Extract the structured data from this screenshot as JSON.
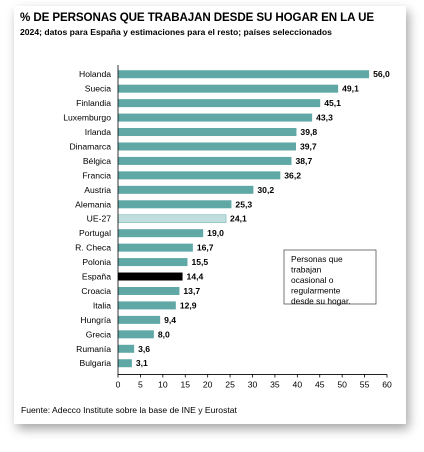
{
  "header": {
    "title": "% DE PERSONAS QUE TRABAJAN DESDE SU HOGAR EN LA UE",
    "subtitle": "2024; datos para España y estimaciones para el resto; países seleccionados"
  },
  "footer": {
    "source": "Fuente: Adecco Institute sobre la base de INE y Eurostat"
  },
  "chart_data": {
    "type": "bar",
    "orientation": "horizontal",
    "title": "% DE PERSONAS QUE TRABAJAN DESDE SU HOGAR EN LA UE",
    "subtitle": "2024; datos para España y estimaciones para el resto; países seleccionados",
    "categories": [
      "Holanda",
      "Suecia",
      "Finlandia",
      "Luxemburgo",
      "Irlanda",
      "Dinamarca",
      "Bélgica",
      "Francia",
      "Austria",
      "Alemania",
      "UE-27",
      "Portugal",
      "R. Checa",
      "Polonia",
      "España",
      "Croacia",
      "Italia",
      "Hungría",
      "Grecia",
      "Rumanía",
      "Bulgaria"
    ],
    "values": [
      56.0,
      49.1,
      45.1,
      43.3,
      39.8,
      39.7,
      38.7,
      36.2,
      30.2,
      25.3,
      24.1,
      19.0,
      16.7,
      15.5,
      14.4,
      13.7,
      12.9,
      9.4,
      8.0,
      3.6,
      3.1
    ],
    "value_labels": [
      "56,0",
      "49,1",
      "45,1",
      "43,3",
      "39,8",
      "39,7",
      "38,7",
      "36,2",
      "30,2",
      "25,3",
      "24,1",
      "19,0",
      "16,7",
      "15,5",
      "14,4",
      "13,7",
      "12,9",
      "9,4",
      "8,0",
      "3,6",
      "3,1"
    ],
    "xlim": [
      0,
      60
    ],
    "xticks": [
      "0",
      "5",
      "10",
      "15",
      "20",
      "25",
      "30",
      "35",
      "40",
      "45",
      "50",
      "55",
      "60"
    ],
    "grid": false,
    "legend_note": "Personas que trabajan ocasional o regularmente desde su hogar.",
    "colors": {
      "default": "#5fa8a6",
      "highlight_eu": "#bfdedd",
      "highlight_spain": "#000000"
    },
    "highlight": {
      "UE-27": "highlight_eu",
      "España": "highlight_spain"
    }
  }
}
